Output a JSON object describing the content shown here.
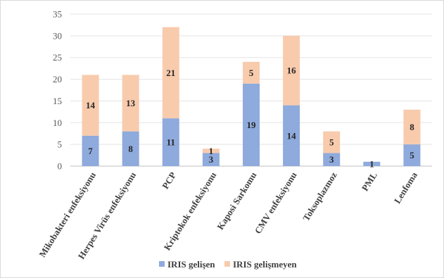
{
  "chart_data": {
    "type": "bar",
    "stacked": true,
    "title": "",
    "xlabel": "",
    "ylabel": "",
    "ylim": [
      0,
      35
    ],
    "yticks": [
      0,
      5,
      10,
      15,
      20,
      25,
      30,
      35
    ],
    "grid": true,
    "legend_position": "bottom",
    "categories": [
      "Mikobakteri enfeksiyonu",
      "Herpes Virüs enfeksiyonu",
      "PCP",
      "Kriptokok enfeksiyonu",
      "Kaposi Sarkomu",
      "CMV enfeksiyonu",
      "Toksoplazmoz",
      "PML",
      "Lenfoma"
    ],
    "series": [
      {
        "name": "IRIS gelişen",
        "color": "#8faadc",
        "values": [
          7,
          8,
          11,
          3,
          19,
          14,
          3,
          1,
          5
        ]
      },
      {
        "name": "IRIS gelişmeyen",
        "color": "#f8cbad",
        "values": [
          14,
          13,
          21,
          1,
          5,
          16,
          5,
          0,
          8
        ]
      }
    ]
  }
}
